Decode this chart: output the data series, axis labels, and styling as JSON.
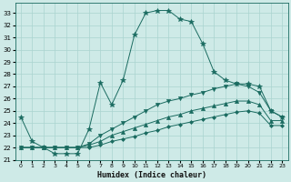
{
  "xlabel": "Humidex (Indice chaleur)",
  "bg_color": "#ceeae7",
  "grid_color": "#aad4d0",
  "line_color": "#1a6b60",
  "marker_color": "#1a6b60",
  "xlim": [
    -0.5,
    23.5
  ],
  "ylim": [
    21,
    33.8
  ],
  "yticks": [
    21,
    22,
    23,
    24,
    25,
    26,
    27,
    28,
    29,
    30,
    31,
    32,
    33
  ],
  "xticks": [
    0,
    1,
    2,
    3,
    4,
    5,
    6,
    7,
    8,
    9,
    10,
    11,
    12,
    13,
    14,
    15,
    16,
    17,
    18,
    19,
    20,
    21,
    22,
    23
  ],
  "series": [
    {
      "x": [
        0,
        1,
        2,
        3,
        4,
        5,
        6,
        7,
        8,
        9,
        10,
        11,
        12,
        13,
        14,
        15,
        16,
        17,
        18,
        19,
        20,
        21,
        22,
        23
      ],
      "y": [
        24.5,
        22.5,
        22.0,
        21.5,
        21.5,
        21.5,
        23.5,
        27.3,
        25.5,
        27.5,
        31.2,
        33.0,
        33.2,
        33.2,
        32.5,
        32.3,
        30.5,
        28.2,
        27.5,
        27.2,
        27.2,
        27.0,
        25.0,
        24.5
      ],
      "marker": "*",
      "ms": 4
    },
    {
      "x": [
        0,
        1,
        2,
        3,
        4,
        5,
        6,
        7,
        8,
        9,
        10,
        11,
        12,
        13,
        14,
        15,
        16,
        17,
        18,
        19,
        20,
        21,
        22,
        23
      ],
      "y": [
        22.0,
        22.0,
        22.0,
        22.0,
        22.0,
        22.0,
        22.3,
        23.0,
        23.5,
        24.0,
        24.5,
        25.0,
        25.5,
        25.8,
        26.0,
        26.3,
        26.5,
        26.8,
        27.0,
        27.2,
        27.0,
        26.5,
        25.0,
        24.5
      ],
      "marker": "v",
      "ms": 3
    },
    {
      "x": [
        0,
        1,
        2,
        3,
        4,
        5,
        6,
        7,
        8,
        9,
        10,
        11,
        12,
        13,
        14,
        15,
        16,
        17,
        18,
        19,
        20,
        21,
        22,
        23
      ],
      "y": [
        22.0,
        22.0,
        22.0,
        22.0,
        22.0,
        22.0,
        22.2,
        22.5,
        23.0,
        23.3,
        23.6,
        23.9,
        24.2,
        24.5,
        24.7,
        25.0,
        25.2,
        25.4,
        25.6,
        25.8,
        25.8,
        25.5,
        24.2,
        24.2
      ],
      "marker": "^",
      "ms": 3
    },
    {
      "x": [
        0,
        1,
        2,
        3,
        4,
        5,
        6,
        7,
        8,
        9,
        10,
        11,
        12,
        13,
        14,
        15,
        16,
        17,
        18,
        19,
        20,
        21,
        22,
        23
      ],
      "y": [
        22.0,
        22.0,
        22.0,
        22.0,
        22.0,
        22.0,
        22.0,
        22.2,
        22.5,
        22.7,
        22.9,
        23.2,
        23.4,
        23.7,
        23.9,
        24.1,
        24.3,
        24.5,
        24.7,
        24.9,
        25.0,
        24.8,
        23.8,
        23.8
      ],
      "marker": "D",
      "ms": 2
    }
  ]
}
